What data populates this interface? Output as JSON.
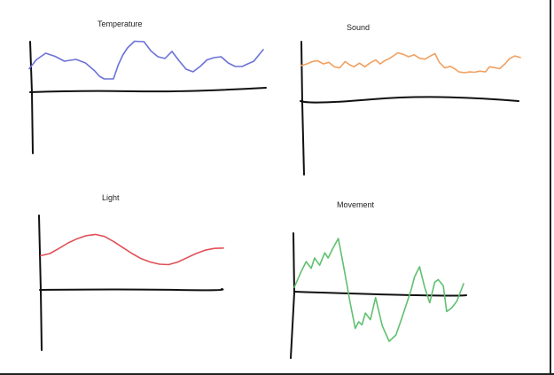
{
  "chart_data": [
    {
      "type": "line",
      "title": "Temperature",
      "xlabel": "",
      "ylabel": "",
      "grid": false,
      "color": "#6b72d6",
      "x": [
        0,
        0.03,
        0.07,
        0.11,
        0.15,
        0.2,
        0.24,
        0.28,
        0.3,
        0.32,
        0.36,
        0.38,
        0.4,
        0.42,
        0.45,
        0.49,
        0.52,
        0.55,
        0.58,
        0.61,
        0.64,
        0.67,
        0.7,
        0.73,
        0.76,
        0.79,
        0.82,
        0.85,
        0.88,
        0.91,
        0.93,
        0.96,
        0.99,
        1
      ],
      "values": [
        0.35,
        0.55,
        0.7,
        0.63,
        0.52,
        0.56,
        0.48,
        0.3,
        0.18,
        0.12,
        0.12,
        0.43,
        0.66,
        0.82,
        0.97,
        0.96,
        0.75,
        0.62,
        0.58,
        0.74,
        0.53,
        0.34,
        0.28,
        0.4,
        0.55,
        0.6,
        0.62,
        0.48,
        0.4,
        0.4,
        0.45,
        0.52,
        0.72,
        0.78
      ]
    },
    {
      "type": "line",
      "title": "Sound",
      "xlabel": "",
      "ylabel": "",
      "grid": false,
      "color": "#f0a060",
      "x": [
        0,
        0.025,
        0.05,
        0.075,
        0.1,
        0.125,
        0.15,
        0.175,
        0.2,
        0.22,
        0.24,
        0.265,
        0.29,
        0.315,
        0.34,
        0.36,
        0.38,
        0.4,
        0.42,
        0.44,
        0.465,
        0.49,
        0.515,
        0.54,
        0.565,
        0.59,
        0.61,
        0.63,
        0.655,
        0.68,
        0.7,
        0.72,
        0.745,
        0.77,
        0.79,
        0.815,
        0.84,
        0.86,
        0.88,
        0.905,
        0.93,
        0.95,
        0.975,
        1
      ],
      "values": [
        0.58,
        0.62,
        0.68,
        0.7,
        0.62,
        0.66,
        0.55,
        0.52,
        0.68,
        0.6,
        0.55,
        0.64,
        0.55,
        0.65,
        0.72,
        0.62,
        0.7,
        0.75,
        0.82,
        0.9,
        0.86,
        0.8,
        0.85,
        0.76,
        0.74,
        0.82,
        0.88,
        0.66,
        0.52,
        0.56,
        0.5,
        0.42,
        0.4,
        0.42,
        0.41,
        0.44,
        0.42,
        0.55,
        0.53,
        0.5,
        0.62,
        0.75,
        0.82,
        0.78
      ]
    },
    {
      "type": "line",
      "title": "Light",
      "xlabel": "",
      "ylabel": "",
      "grid": false,
      "color": "#e05058",
      "x": [
        0,
        0.05,
        0.1,
        0.15,
        0.2,
        0.25,
        0.3,
        0.35,
        0.4,
        0.45,
        0.5,
        0.55,
        0.6,
        0.65,
        0.7,
        0.75,
        0.8,
        0.85,
        0.9,
        0.95,
        1
      ],
      "values": [
        0.45,
        0.5,
        0.62,
        0.75,
        0.85,
        0.92,
        0.95,
        0.9,
        0.78,
        0.64,
        0.5,
        0.38,
        0.3,
        0.25,
        0.24,
        0.3,
        0.4,
        0.5,
        0.58,
        0.62,
        0.63
      ]
    },
    {
      "type": "line",
      "title": "Movement",
      "xlabel": "",
      "ylabel": "",
      "grid": false,
      "color": "#60c070",
      "x": [
        0,
        0.04,
        0.07,
        0.1,
        0.12,
        0.15,
        0.18,
        0.2,
        0.23,
        0.26,
        0.29,
        0.31,
        0.33,
        0.36,
        0.38,
        0.4,
        0.42,
        0.45,
        0.48,
        0.52,
        0.56,
        0.6,
        0.63,
        0.66,
        0.69,
        0.71,
        0.74,
        0.77,
        0.8,
        0.83,
        0.85,
        0.88,
        0.9,
        0.93,
        0.96,
        1
      ],
      "values": [
        0.05,
        0.35,
        0.55,
        0.42,
        0.62,
        0.48,
        0.72,
        0.62,
        0.82,
        1.0,
        0.48,
        0.12,
        -0.25,
        -0.75,
        -0.62,
        -0.68,
        -0.45,
        -0.58,
        -0.15,
        -0.7,
        -1.0,
        -0.88,
        -0.6,
        -0.3,
        0.0,
        0.25,
        0.45,
        0.05,
        -0.25,
        0.15,
        0.2,
        0.08,
        -0.42,
        -0.35,
        -0.22,
        0.12
      ]
    }
  ]
}
